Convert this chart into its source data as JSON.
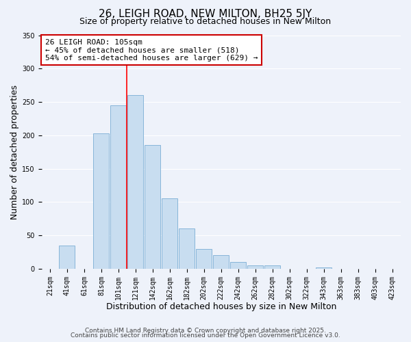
{
  "title": "26, LEIGH ROAD, NEW MILTON, BH25 5JY",
  "subtitle": "Size of property relative to detached houses in New Milton",
  "xlabel": "Distribution of detached houses by size in New Milton",
  "ylabel": "Number of detached properties",
  "bar_color": "#c8ddf0",
  "bar_edge_color": "#7aadd4",
  "background_color": "#eef2fa",
  "grid_color": "#ffffff",
  "bin_labels": [
    "21sqm",
    "41sqm",
    "61sqm",
    "81sqm",
    "101sqm",
    "121sqm",
    "142sqm",
    "162sqm",
    "182sqm",
    "202sqm",
    "222sqm",
    "242sqm",
    "262sqm",
    "282sqm",
    "302sqm",
    "322sqm",
    "343sqm",
    "363sqm",
    "383sqm",
    "403sqm",
    "423sqm"
  ],
  "bar_heights": [
    0,
    35,
    0,
    203,
    245,
    260,
    185,
    105,
    60,
    30,
    20,
    10,
    5,
    5,
    0,
    0,
    2,
    0,
    0,
    0,
    0
  ],
  "ylim": [
    0,
    350
  ],
  "red_line_x": 4.5,
  "annotation_title": "26 LEIGH ROAD: 105sqm",
  "annotation_line1": "← 45% of detached houses are smaller (518)",
  "annotation_line2": "54% of semi-detached houses are larger (629) →",
  "footer1": "Contains HM Land Registry data © Crown copyright and database right 2025.",
  "footer2": "Contains public sector information licensed under the Open Government Licence v3.0.",
  "title_fontsize": 11,
  "subtitle_fontsize": 9,
  "axis_label_fontsize": 9,
  "tick_fontsize": 7,
  "annotation_fontsize": 8,
  "footer_fontsize": 6.5
}
